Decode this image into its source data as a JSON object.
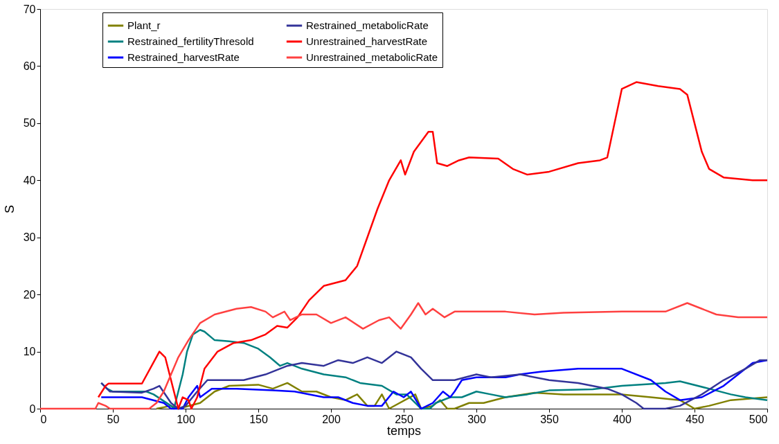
{
  "chart_data": {
    "type": "line",
    "xlabel": "temps",
    "ylabel": "S",
    "xlim": [
      0,
      500
    ],
    "ylim": [
      0,
      70
    ],
    "xticks": [
      0,
      50,
      100,
      150,
      200,
      250,
      300,
      350,
      400,
      450,
      500
    ],
    "yticks": [
      0,
      10,
      20,
      30,
      40,
      50,
      60,
      70
    ],
    "grid": false,
    "legend": "top left",
    "marker": "none",
    "line_style": "solid",
    "series": [
      {
        "name": "Plant_r",
        "color": "#808000",
        "x": [
          80,
          90,
          95,
          110,
          120,
          130,
          150,
          160,
          170,
          180,
          190,
          200,
          210,
          218,
          225,
          230,
          235,
          240,
          258,
          262,
          270,
          275,
          280,
          285,
          295,
          305,
          320,
          340,
          360,
          400,
          420,
          440,
          450,
          460,
          475,
          500
        ],
        "values": [
          0,
          0.5,
          0,
          1,
          3,
          4,
          4.2,
          3.5,
          4.5,
          3,
          3,
          2,
          1.5,
          2.5,
          0.5,
          0.5,
          2.5,
          0,
          2.5,
          0,
          0.5,
          1.5,
          0,
          0,
          1,
          1,
          2,
          2.8,
          2.5,
          2.5,
          2,
          1.5,
          0,
          0.5,
          1.5,
          2
        ]
      },
      {
        "name": "Restrained_fertilityThresold",
        "color": "#008080",
        "x": [
          42,
          46,
          50,
          73,
          78,
          90,
          92,
          95,
          98,
          101,
          105,
          110,
          113,
          120,
          130,
          140,
          150,
          158,
          165,
          170,
          180,
          195,
          210,
          220,
          235,
          245,
          252,
          256,
          262,
          268,
          272,
          282,
          290,
          300,
          310,
          320,
          335,
          350,
          380,
          400,
          430,
          440,
          460,
          475,
          485,
          500
        ],
        "values": [
          4.5,
          3.5,
          3,
          3,
          2.5,
          0.5,
          0,
          3,
          6,
          10,
          13,
          13.8,
          13.5,
          12,
          11.8,
          11.5,
          10.5,
          9,
          7.5,
          8,
          7,
          6,
          5.5,
          4.5,
          4,
          2.5,
          2.5,
          1.5,
          0,
          0,
          1,
          2,
          2,
          3,
          2.5,
          2,
          2.5,
          3.2,
          3.4,
          4,
          4.5,
          4.8,
          3.5,
          2.5,
          2,
          1.5
        ]
      },
      {
        "name": "Restrained_harvestRate",
        "color": "#0000ff",
        "x": [
          42,
          70,
          85,
          90,
          98,
          102,
          108,
          110,
          118,
          135,
          160,
          175,
          195,
          205,
          215,
          225,
          235,
          243,
          250,
          255,
          262,
          270,
          277,
          282,
          285,
          290,
          300,
          320,
          330,
          345,
          370,
          400,
          420,
          430,
          440,
          455,
          470,
          480,
          490,
          500
        ],
        "values": [
          2,
          2,
          1,
          0,
          0,
          2,
          4,
          2,
          3.5,
          3.5,
          3.2,
          3,
          2,
          2,
          1,
          0.5,
          0.5,
          3,
          2,
          3,
          0,
          1,
          3,
          2,
          3,
          5,
          5.5,
          5.5,
          6,
          6.5,
          7,
          7,
          5,
          3,
          1.5,
          2,
          4,
          6,
          8,
          8.5
        ]
      },
      {
        "name": "Restrained_metabolicRate",
        "color": "#333399",
        "x": [
          42,
          48,
          70,
          78,
          82,
          90,
          95,
          100,
          108,
          115,
          130,
          140,
          155,
          170,
          180,
          195,
          205,
          215,
          225,
          235,
          245,
          255,
          262,
          270,
          285,
          300,
          310,
          330,
          350,
          370,
          390,
          400,
          410,
          415,
          430,
          440,
          455,
          470,
          485,
          495,
          500
        ],
        "values": [
          4.5,
          3,
          2.8,
          3.5,
          4,
          1,
          0,
          0.5,
          3,
          5,
          5,
          5,
          6,
          7.5,
          8,
          7.5,
          8.5,
          8,
          9,
          8,
          10,
          9,
          7,
          5,
          5,
          6,
          5.5,
          6,
          5,
          4.5,
          3.5,
          2.5,
          1,
          0,
          0,
          0.5,
          2.5,
          5,
          7,
          8.5,
          8.5
        ]
      },
      {
        "name": "Unrestrained_harvestRate",
        "color": "#ff0000",
        "x": [
          40,
          45,
          47,
          70,
          82,
          86,
          95,
          98,
          102,
          104,
          108,
          113,
          122,
          133,
          145,
          155,
          163,
          170,
          177,
          185,
          195,
          210,
          218,
          225,
          232,
          240,
          248,
          251,
          257,
          267,
          270,
          273,
          280,
          288,
          295,
          315,
          325,
          335,
          350,
          370,
          385,
          390,
          395,
          400,
          410,
          425,
          440,
          445,
          450,
          455,
          460,
          470,
          490,
          500
        ],
        "values": [
          2,
          4,
          4.4,
          4.4,
          10,
          9,
          0,
          2,
          1.5,
          0,
          2,
          7,
          10,
          11.5,
          12,
          13,
          14.5,
          14.2,
          16,
          19,
          21.5,
          22.5,
          25,
          30,
          35,
          40,
          43.5,
          41,
          45,
          48.5,
          48.5,
          43,
          42.5,
          43.5,
          44,
          43.8,
          42,
          41,
          41.5,
          43,
          43.5,
          44,
          50,
          56,
          57.2,
          56.5,
          56,
          55,
          50,
          45,
          42,
          40.5,
          40,
          40
        ]
      },
      {
        "name": "Unrestrained_metabolicRate",
        "color": "#ff4040",
        "x": [
          0,
          38,
          40,
          45,
          48,
          75,
          80,
          85,
          90,
          95,
          102,
          110,
          120,
          135,
          145,
          155,
          160,
          168,
          172,
          180,
          190,
          200,
          210,
          222,
          233,
          240,
          248,
          255,
          260,
          265,
          270,
          278,
          285,
          320,
          340,
          360,
          400,
          430,
          445,
          455,
          465,
          480,
          500
        ],
        "values": [
          0,
          0,
          1,
          0.5,
          0,
          0,
          1,
          3,
          6,
          9,
          12,
          15,
          16.5,
          17.5,
          17.8,
          17,
          16,
          17,
          15.5,
          16.5,
          16.5,
          15,
          16,
          14,
          15.5,
          16,
          14,
          16.5,
          18.5,
          16.5,
          17.5,
          16,
          17,
          17,
          16.5,
          16.8,
          17,
          17,
          18.5,
          17.5,
          16.5,
          16,
          16
        ]
      }
    ]
  }
}
